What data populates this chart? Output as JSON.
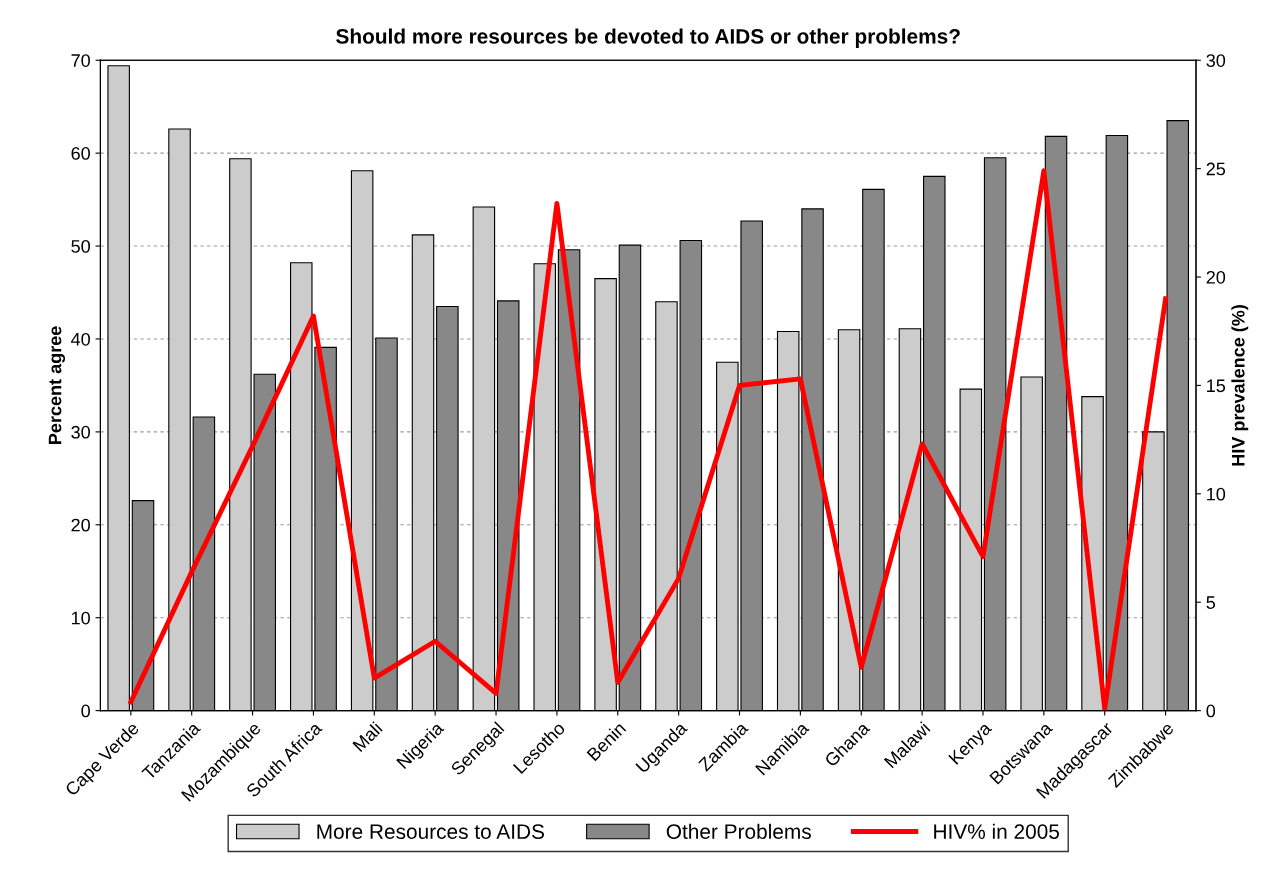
{
  "chart_data": {
    "type": "bar",
    "title": "Should more resources be devoted to AIDS or other problems?",
    "ylabel": "Percent agree",
    "y2label": "HIV prevalence (%)",
    "categories": [
      "Cape Verde",
      "Tanzania",
      "Mozambique",
      "South Africa",
      "Mali",
      "Nigeria",
      "Senegal",
      "Lesotho",
      "Benin",
      "Uganda",
      "Zambia",
      "Namibia",
      "Ghana",
      "Malawi",
      "Kenya",
      "Botswana",
      "Madagascar",
      "Zimbabwe"
    ],
    "series": [
      {
        "name": "More Resources to AIDS",
        "color": "#cccccc",
        "values": [
          69.4,
          62.6,
          59.4,
          48.2,
          58.1,
          51.2,
          54.2,
          48.1,
          46.5,
          44.0,
          37.5,
          40.8,
          41.0,
          41.1,
          34.6,
          35.9,
          33.8,
          30.0
        ]
      },
      {
        "name": "Other Problems",
        "color": "#888888",
        "values": [
          22.6,
          31.6,
          36.2,
          39.1,
          40.1,
          43.5,
          44.1,
          49.6,
          50.1,
          50.6,
          52.7,
          54.0,
          56.1,
          57.5,
          59.5,
          61.8,
          61.9,
          63.5
        ]
      },
      {
        "name": "HIV% in 2005",
        "type": "line",
        "axis": "y2",
        "color": "#ff0000",
        "line_style": "solid",
        "values": [
          0.4,
          6.4,
          12.2,
          18.2,
          1.5,
          3.2,
          0.8,
          23.4,
          1.3,
          6.1,
          15.0,
          15.3,
          2.0,
          12.3,
          7.1,
          24.9,
          0.1,
          19.0
        ]
      }
    ],
    "ylim": [
      0,
      70
    ],
    "yticks": [
      0,
      10,
      20,
      30,
      40,
      50,
      60,
      70
    ],
    "y2lim": [
      0,
      30
    ],
    "y2ticks": [
      0,
      5,
      10,
      15,
      20,
      25,
      30
    ],
    "grid": "y",
    "legend": "bottom"
  }
}
